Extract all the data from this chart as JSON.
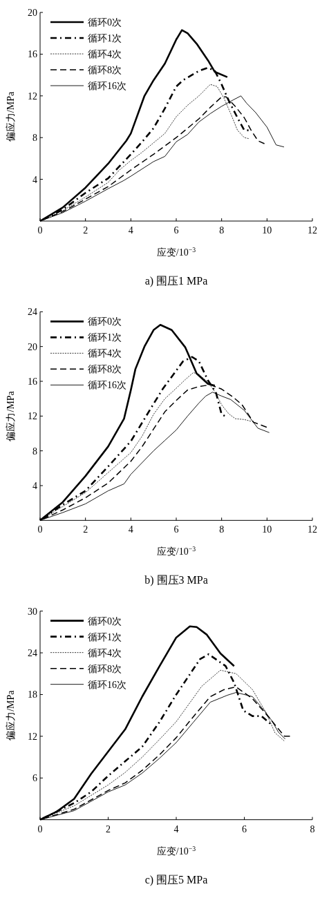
{
  "chart_data": [
    {
      "type": "line",
      "title": "a) 围压1 MPa",
      "xlabel": "应变/10$^{−3}$",
      "ylabel": "偏应力/MPa",
      "xlim": [
        0,
        12
      ],
      "xticks": [
        0,
        2,
        4,
        6,
        8,
        10,
        12
      ],
      "ylim": [
        0,
        20
      ],
      "yticks": [
        4,
        8,
        12,
        16,
        20
      ],
      "legend": "top left",
      "grid": false,
      "series": [
        {
          "name": "循环0次",
          "color": "#000000",
          "line_style": "solid",
          "x": [
            0,
            1,
            2,
            3,
            3.8,
            4,
            4.6,
            5,
            5.5,
            6,
            6.25,
            6.5,
            6.9,
            7.4,
            7.7,
            8.25
          ],
          "values": [
            0,
            1.3,
            3.2,
            5.5,
            7.7,
            8.4,
            12.0,
            13.5,
            15.1,
            17.4,
            18.3,
            18.0,
            17.0,
            15.4,
            14.3,
            13.8
          ]
        },
        {
          "name": "循环1次",
          "color": "#000000",
          "line_style": "dashdot",
          "x": [
            0,
            1,
            2,
            3,
            4,
            4.5,
            5,
            5.5,
            6,
            6.3,
            7,
            7.4,
            7.7,
            8,
            8.3,
            8.7,
            9.0,
            9.2
          ],
          "values": [
            0,
            1.1,
            2.7,
            4.1,
            6.4,
            7.6,
            8.9,
            10.8,
            12.9,
            13.5,
            14.4,
            14.7,
            14.4,
            13.1,
            11.6,
            9.9,
            8.7,
            8.7
          ]
        },
        {
          "name": "循环4次",
          "color": "#000000",
          "line_style": "dotted",
          "x": [
            0,
            1,
            2,
            3,
            3.5,
            4,
            4.5,
            5,
            5.5,
            6,
            6.5,
            7,
            7.5,
            7.8,
            8.1,
            8.4,
            8.7,
            9.0,
            9.2
          ],
          "values": [
            0,
            1.0,
            2.3,
            3.7,
            4.9,
            5.8,
            6.6,
            7.5,
            8.4,
            10.0,
            11.1,
            12.0,
            13.1,
            12.9,
            11.8,
            10.3,
            8.7,
            8.0,
            7.9
          ]
        },
        {
          "name": "循环8次",
          "color": "#000000",
          "line_style": "dashed",
          "x": [
            0,
            1,
            2,
            3,
            4,
            5,
            6,
            7,
            7.5,
            8,
            8.2,
            8.6,
            9,
            9.3,
            9.6,
            9.9
          ],
          "values": [
            0,
            0.9,
            2.1,
            3.3,
            4.9,
            6.4,
            8.0,
            9.8,
            10.9,
            11.9,
            11.9,
            11.0,
            9.9,
            8.7,
            7.7,
            7.4
          ]
        },
        {
          "name": "循环16次",
          "color": "#000000",
          "line_style": "solid",
          "x": [
            0,
            1,
            2,
            3,
            3.7,
            4,
            5,
            5.5,
            6,
            6.5,
            7,
            7.5,
            8,
            8.5,
            8.85,
            9.1,
            9.5,
            10,
            10.4,
            10.75
          ],
          "values": [
            0,
            0.8,
            1.9,
            3.1,
            3.9,
            4.3,
            5.7,
            6.2,
            7.6,
            8.3,
            9.5,
            10.3,
            11.0,
            11.6,
            12.0,
            11.3,
            10.4,
            9.0,
            7.3,
            7.1
          ]
        }
      ]
    },
    {
      "type": "line",
      "title": "b) 围压3 MPa",
      "xlabel": "应变/10$^{−3}$",
      "ylabel": "偏应力/MPa",
      "xlim": [
        0,
        12
      ],
      "xticks": [
        0,
        2,
        4,
        6,
        8,
        10,
        12
      ],
      "ylim": [
        0,
        24
      ],
      "yticks": [
        4,
        8,
        12,
        16,
        20,
        24
      ],
      "legend": "top left",
      "grid": false,
      "series": [
        {
          "name": "循环0次",
          "color": "#000000",
          "line_style": "solid",
          "x": [
            0,
            1,
            2,
            3,
            3.7,
            4,
            4.2,
            4.6,
            5.0,
            5.3,
            5.8,
            6.4,
            6.9,
            7.4,
            7.7
          ],
          "values": [
            0,
            2.1,
            5.1,
            8.5,
            11.7,
            15.0,
            17.4,
            20.0,
            21.9,
            22.5,
            21.9,
            19.9,
            16.9,
            15.7,
            15.5
          ]
        },
        {
          "name": "循环1次",
          "color": "#000000",
          "line_style": "dashdot",
          "x": [
            0,
            1,
            2,
            3,
            4,
            5,
            5.4,
            6.3,
            6.7,
            7.0,
            7.4,
            7.75,
            8.0,
            8.15
          ],
          "values": [
            0,
            1.8,
            3.4,
            6.2,
            9.1,
            13.4,
            15.1,
            18.3,
            18.8,
            18.3,
            16.1,
            14.7,
            12.2,
            12.0
          ]
        },
        {
          "name": "循环4次",
          "color": "#000000",
          "line_style": "dotted",
          "x": [
            0,
            1,
            2,
            3,
            4,
            4.5,
            5,
            5.5,
            6,
            6.4,
            6.75,
            7.0,
            7.4,
            7.7,
            8.0,
            8.3,
            8.6,
            9.0,
            9.3
          ],
          "values": [
            0,
            1.6,
            3.2,
            5.5,
            7.8,
            9.7,
            12.2,
            14.0,
            15.2,
            16.2,
            17.0,
            16.8,
            15.9,
            14.8,
            13.3,
            12.3,
            11.7,
            11.6,
            11.4
          ]
        },
        {
          "name": "循环8次",
          "color": "#000000",
          "line_style": "dashed",
          "x": [
            0,
            1,
            2,
            3,
            4,
            4.5,
            5,
            5.5,
            6,
            6.5,
            7,
            7.5,
            8,
            8.5,
            8.9,
            9.4,
            10
          ],
          "values": [
            0,
            1.2,
            2.6,
            4.3,
            6.8,
            8.5,
            10.5,
            12.5,
            13.8,
            15.0,
            15.4,
            15.6,
            15.1,
            14.2,
            13.3,
            11.3,
            10.7
          ]
        },
        {
          "name": "循环16次",
          "color": "#000000",
          "line_style": "solid",
          "x": [
            0,
            1,
            2,
            3,
            3.7,
            4,
            5,
            5.5,
            6,
            6.5,
            7,
            7.3,
            7.6,
            8,
            8.4,
            9.0,
            9.6,
            10.1
          ],
          "values": [
            0,
            0.9,
            1.9,
            3.4,
            4.2,
            5.3,
            8.0,
            9.2,
            10.4,
            12.0,
            13.5,
            14.3,
            14.75,
            14.3,
            13.9,
            12.65,
            10.6,
            10.1
          ]
        }
      ]
    },
    {
      "type": "line",
      "title": "c) 围压5 MPa",
      "xlabel": "应变/10$^{−3}$",
      "ylabel": "偏应力/MPa",
      "xlim": [
        0,
        8
      ],
      "xticks": [
        0,
        2,
        4,
        6,
        8
      ],
      "ylim": [
        0,
        30
      ],
      "yticks": [
        6,
        12,
        18,
        24,
        30
      ],
      "legend": "top left",
      "grid": false,
      "series": [
        {
          "name": "循环0次",
          "color": "#000000",
          "line_style": "solid",
          "x": [
            0,
            0.5,
            1,
            1.5,
            2,
            2.5,
            3,
            3.5,
            4,
            4.4,
            4.6,
            4.9,
            5.3,
            5.7
          ],
          "values": [
            0,
            1.2,
            3.0,
            6.6,
            9.8,
            13.0,
            17.7,
            22.0,
            26.2,
            27.8,
            27.7,
            26.6,
            23.9,
            22.1
          ]
        },
        {
          "name": "循环1次",
          "color": "#000000",
          "line_style": "dashdot",
          "x": [
            0,
            1,
            1.5,
            2,
            2.5,
            3,
            3.5,
            4,
            4.7,
            4.95,
            5.45,
            5.7,
            5.97,
            6.24,
            6.5,
            6.77
          ],
          "values": [
            0,
            2.4,
            4.0,
            6.3,
            8.4,
            10.5,
            14.0,
            18.0,
            23.1,
            23.8,
            22.1,
            19.7,
            15.7,
            14.9,
            14.9,
            13.8
          ]
        },
        {
          "name": "循环4次",
          "color": "#000000",
          "line_style": "dotted",
          "x": [
            0,
            1,
            2,
            2.5,
            3,
            3.5,
            4,
            4.75,
            5.3,
            5.76,
            6.24,
            6.64,
            6.9,
            7.18
          ],
          "values": [
            0,
            2.0,
            5.0,
            6.8,
            9.0,
            11.5,
            14.1,
            19.2,
            21.5,
            21.0,
            18.7,
            15.4,
            12.5,
            11.3
          ]
        },
        {
          "name": "循环8次",
          "color": "#000000",
          "line_style": "dashed",
          "x": [
            0,
            1,
            2,
            2.5,
            3,
            3.5,
            4,
            4.5,
            5.0,
            5.4,
            5.76,
            6.24,
            6.64,
            7.18,
            7.35
          ],
          "values": [
            0,
            1.5,
            4.2,
            5.3,
            7.1,
            9.3,
            11.8,
            14.8,
            17.7,
            18.7,
            19.1,
            17.4,
            15.2,
            12.0,
            12.0
          ]
        },
        {
          "name": "循环16次",
          "color": "#000000",
          "line_style": "solid",
          "x": [
            0,
            1,
            2,
            2.5,
            3,
            3.5,
            4,
            4.5,
            5,
            5.5,
            5.76,
            6.24,
            6.6,
            6.8,
            7.0,
            7.2
          ],
          "values": [
            0,
            1.3,
            4.0,
            5.0,
            6.7,
            8.8,
            11.1,
            14.0,
            16.9,
            17.9,
            18.3,
            17.7,
            15.6,
            14.3,
            12.6,
            11.6
          ]
        }
      ]
    }
  ]
}
